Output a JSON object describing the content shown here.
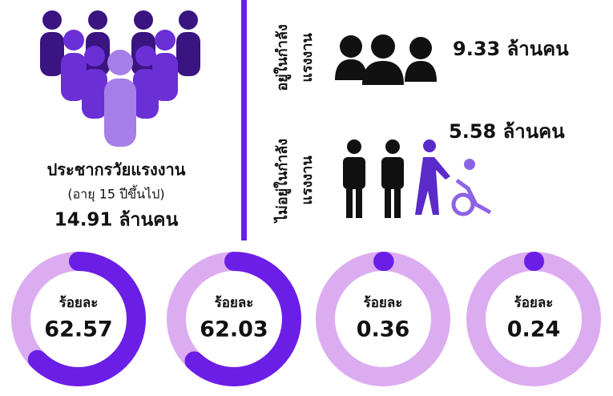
{
  "population": {
    "title": "ประชากรวัยแรงงาน",
    "subtitle": "(อายุ 15 ปีขึ้นไป)",
    "total": "14.91 ล้านคน"
  },
  "in_labor_force": {
    "label_line1": "อยู่ในกำลัง",
    "label_line2": "แรงงาน",
    "total": "9.33 ล้านคน"
  },
  "not_in_labor_force": {
    "label_line1": "ไม่อยู่ในกำลัง",
    "label_line2": "แรงงาน",
    "total": "5.58 ล้านคน"
  },
  "donuts": [
    {
      "label": "ร้อยละ",
      "value": 62.57
    },
    {
      "label": "ร้อยละ",
      "value": 62.03
    },
    {
      "label": "ร้อยละ",
      "value": 0.36
    },
    {
      "label": "ร้อยละ",
      "value": 0.24
    }
  ],
  "colors": {
    "arc": "#6b1ee6",
    "ring": "#dcacf0"
  }
}
